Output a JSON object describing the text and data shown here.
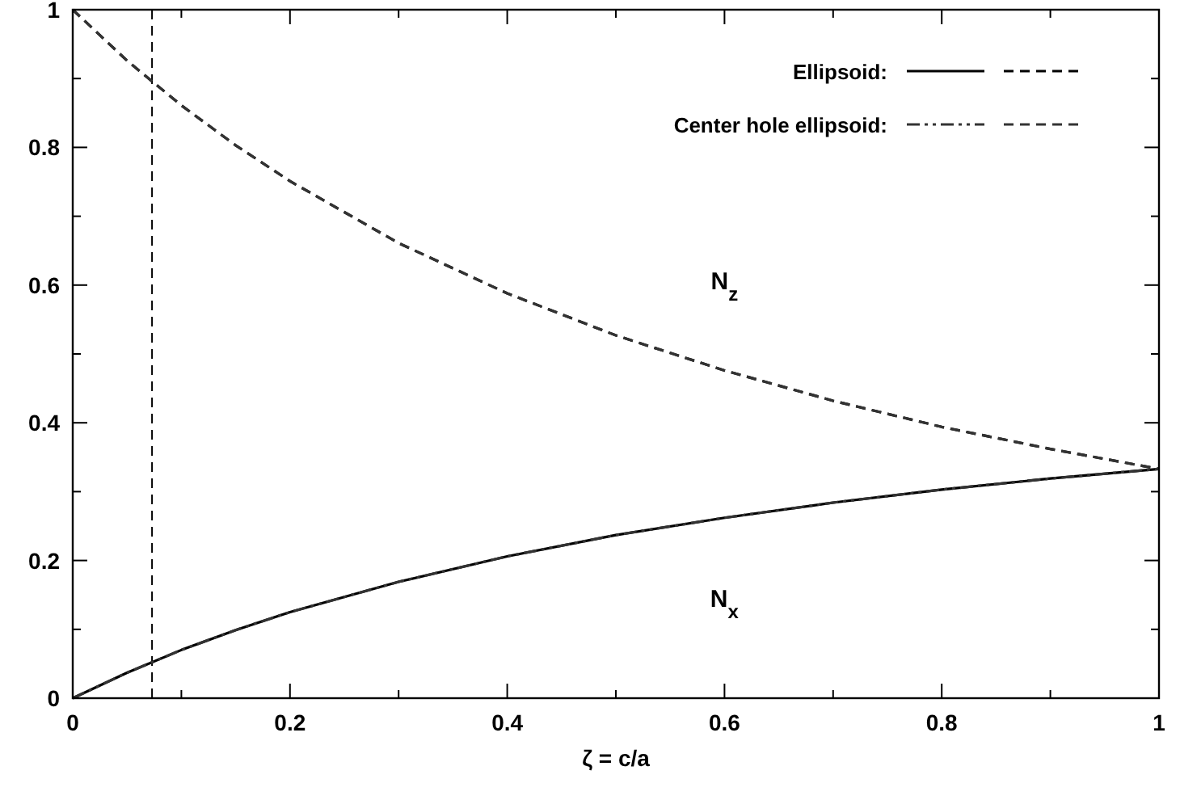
{
  "chart_data": {
    "type": "line",
    "xlabel": "ζ = c/a",
    "x": [
      0,
      0.05,
      0.1,
      0.15,
      0.2,
      0.3,
      0.4,
      0.5,
      0.6,
      0.7,
      0.8,
      0.9,
      1
    ],
    "series": [
      {
        "name": "Ellipsoid:",
        "color": "#000000",
        "line_style": "solid",
        "values": [
          0,
          0.037,
          0.07,
          0.099,
          0.125,
          0.169,
          0.206,
          0.237,
          0.262,
          0.284,
          0.303,
          0.319,
          0.333
        ]
      },
      {
        "color": "#000000",
        "line_style": "dashed",
        "values": [
          1,
          0.926,
          0.861,
          0.803,
          0.751,
          0.661,
          0.588,
          0.527,
          0.476,
          0.432,
          0.394,
          0.362,
          0.333
        ]
      },
      {
        "name": "Center hole ellipsoid:",
        "color": "#333333",
        "line_style": "dotted",
        "values": [
          0,
          0.037,
          0.07,
          0.099,
          0.125,
          0.169,
          0.206,
          0.237,
          0.262,
          0.284,
          0.303,
          0.319,
          0.333
        ]
      },
      {
        "color": "#333333",
        "line_style": "dashed",
        "values": [
          1,
          0.926,
          0.861,
          0.803,
          0.751,
          0.661,
          0.588,
          0.527,
          0.476,
          0.432,
          0.394,
          0.362,
          0.333
        ]
      }
    ],
    "xlim": [
      0,
      1
    ],
    "ylim": [
      0,
      1
    ],
    "xticks": [
      0,
      {
        "value": 0.1,
        "label": null
      },
      0.2,
      {
        "value": 0.3,
        "label": null
      },
      0.4,
      {
        "value": 0.5,
        "label": null
      },
      0.6,
      {
        "value": 0.7,
        "label": null
      },
      0.8,
      {
        "value": 0.9,
        "label": null
      },
      1
    ],
    "yticks": [
      0,
      {
        "value": 0.1,
        "label": null
      },
      0.2,
      {
        "value": 0.3,
        "label": null
      },
      0.4,
      {
        "value": 0.5,
        "label": null
      },
      0.6,
      {
        "value": 0.7,
        "label": null
      },
      0.8,
      {
        "value": 0.9,
        "label": null
      },
      1
    ],
    "ref_lines": [
      {
        "axis": "x",
        "value": 0.073,
        "color": "#000000",
        "line_style": "dashed"
      }
    ],
    "annotations": [
      {
        "text": "N$_{z}$",
        "x": 0.6,
        "y": 0.476
      },
      {
        "text": "N$_{x}$",
        "x": 0.6,
        "y": 0.262
      }
    ],
    "legend": "top right",
    "grid": false
  }
}
